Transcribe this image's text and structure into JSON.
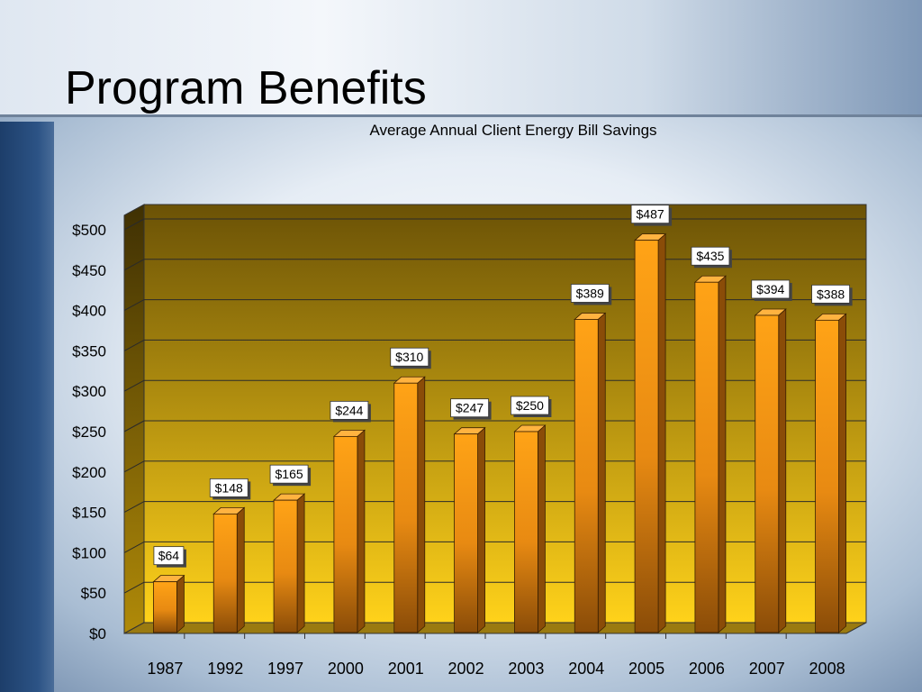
{
  "slide": {
    "title": "Program Benefits"
  },
  "chart_data": {
    "type": "bar",
    "title": "Average Annual Client Energy Bill Savings",
    "xlabel": "",
    "ylabel": "",
    "ylim": [
      0,
      500
    ],
    "yticks": [
      "$0",
      "$50",
      "$100",
      "$150",
      "$200",
      "$250",
      "$300",
      "$350",
      "$400",
      "$450",
      "$500"
    ],
    "categories": [
      "1987",
      "1992",
      "1997",
      "2000",
      "2001",
      "2002",
      "2003",
      "2004",
      "2005",
      "2006",
      "2007",
      "2008"
    ],
    "values": [
      64,
      148,
      165,
      244,
      310,
      247,
      250,
      389,
      487,
      435,
      394,
      388
    ],
    "labels": [
      "$64",
      "$148",
      "$165",
      "$244",
      "$310",
      "$247",
      "$250",
      "$389",
      "$487",
      "$435",
      "$394",
      "$388"
    ],
    "grid": true,
    "legend": "none",
    "colors": {
      "bar_front": "#f59a10",
      "bar_side": "#8a4c08",
      "plot_top": "#6b5206",
      "plot_bottom": "#ffd21a"
    }
  }
}
